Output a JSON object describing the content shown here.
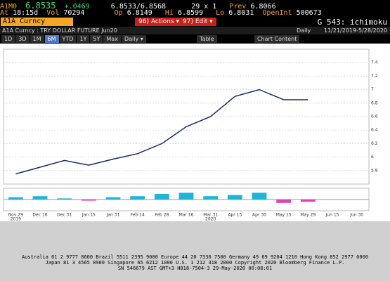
{
  "header": {
    "symbol": "A1M0",
    "price": "6.8535",
    "change": "+.0469",
    "bid_ask": "6.8533/6.8568",
    "size": "29 x 1",
    "prev_label": "Prev",
    "prev": "6.8066",
    "at_label": "At",
    "time": "18:15d",
    "vol_label": "Vol",
    "vol": "70294",
    "op_label": "Op",
    "op": "6.8149",
    "hi_label": "Hi",
    "hi": "6.8599",
    "lo_label": "Lo",
    "lo": "6.8031",
    "oi_label": "OpenInt",
    "oi": "500673",
    "ticker_field": "A1A Curncy",
    "actions": "96) Actions ▾",
    "edit": "97) Edit ▾",
    "page_code": "G 543: ichimoku",
    "description": "A1A Curncy : TRY DOLLAR FUTURE Jun20",
    "period": "Daily",
    "range": "11/21/2019-5/28/2020"
  },
  "toolbar": {
    "buttons": [
      "1D",
      "3D",
      "1M",
      "6M",
      "YTD",
      "1Y",
      "5Y",
      "Max",
      "Daily ▾"
    ],
    "table": "Table",
    "chart_content": "Chart Content"
  },
  "chart_data": {
    "type": "line",
    "categories": [
      "Nov 29",
      "Dec 16",
      "Dec 31",
      "Jan 15",
      "Jan 31",
      "Feb 14",
      "Feb 28",
      "Mar 16",
      "Mar 31",
      "Apr 15",
      "Apr 30",
      "May 15",
      "May 29",
      "Jun 15",
      "Jun 30"
    ],
    "years": [
      "2019",
      "2020"
    ],
    "series": [
      {
        "name": "Last Price",
        "color": "#1a2a6c",
        "values": [
          5.75,
          5.85,
          5.95,
          5.88,
          5.97,
          6.05,
          6.2,
          6.45,
          6.6,
          6.9,
          7.0,
          6.85,
          6.85,
          null,
          null
        ]
      }
    ],
    "ylim": [
      5.6,
      7.6
    ],
    "yticks": [
      5.8,
      6.0,
      6.2,
      6.4,
      6.6,
      6.8,
      7.0,
      7.2,
      7.4
    ],
    "macd": {
      "color": "#1fb5d6",
      "values": [
        0.02,
        0.03,
        0.01,
        -0.01,
        0.02,
        0.03,
        0.05,
        0.06,
        0.03,
        0.04,
        0.06,
        -0.03,
        -0.02,
        null,
        null
      ],
      "ylim": [
        -0.1,
        0.1
      ]
    }
  },
  "footer": {
    "lines": [
      "Australia 61 2 9777 8600 Brazil 5511 2395 9000 Europe 44 20 7330 7500 Germany 49 69 9204 1210 Hong Kong 852 2977 6000",
      "Japan 81 3 4565 8900     Singapore 65 6212 1000     U.S. 1 212 318 2000     Copyright 2020 Bloomberg Finance L.P.",
      "SN 546679 AST  GMT+3 H818-7504-3 29-May-2020 00:08:01"
    ]
  }
}
